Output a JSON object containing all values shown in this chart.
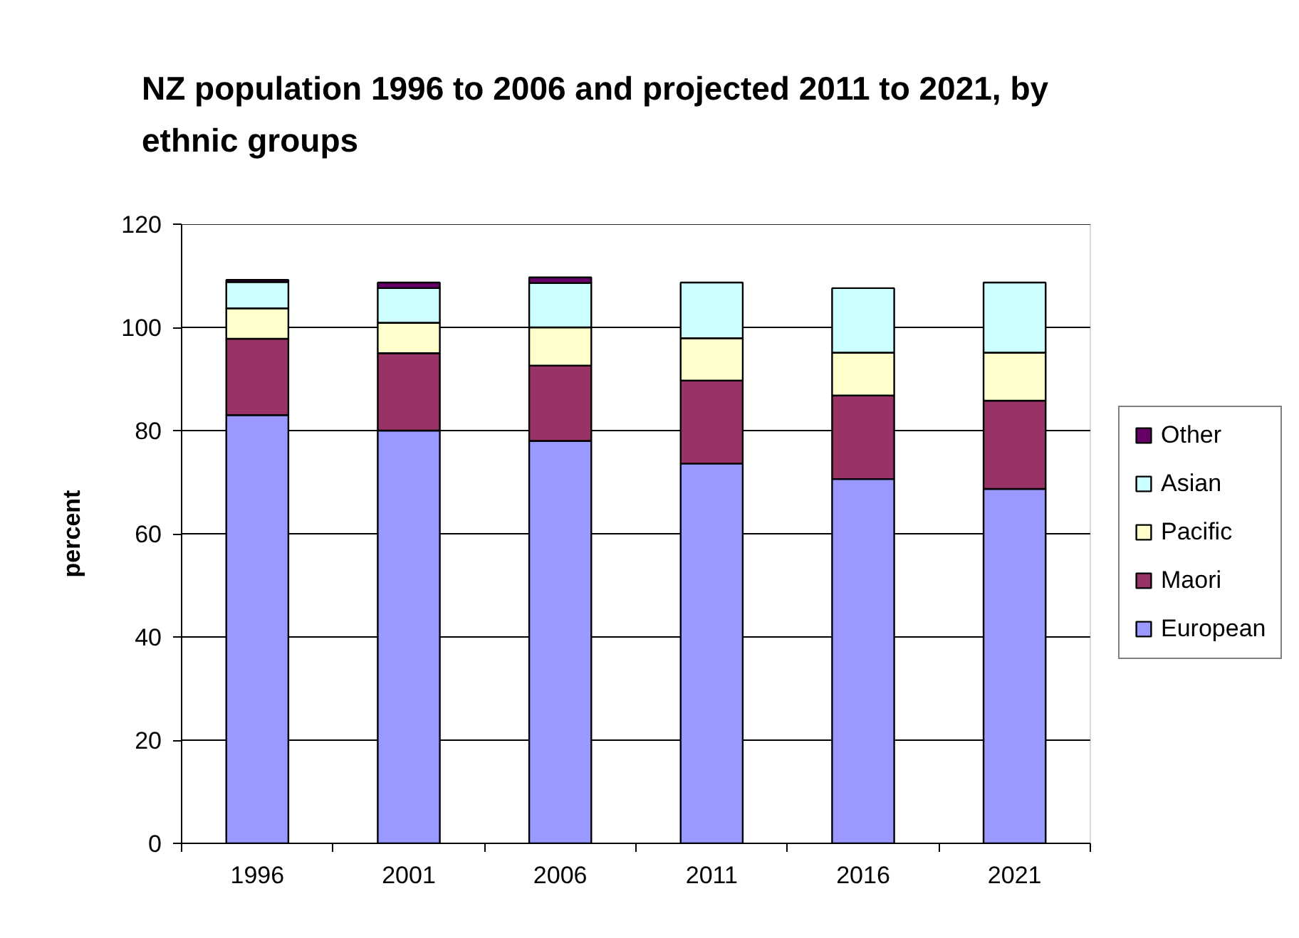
{
  "chart_data": {
    "type": "bar",
    "title": "NZ population 1996 to 2006 and projected 2011 to 2021, by ethnic groups",
    "ylabel": "percent",
    "categories": [
      "1996",
      "2001",
      "2006",
      "2011",
      "2016",
      "2021"
    ],
    "stacked": true,
    "series": [
      {
        "name": "European",
        "color": "#9999ff",
        "values": [
          83,
          80,
          78,
          73.6,
          70.6,
          68.7
        ]
      },
      {
        "name": "Maori",
        "color": "#993366",
        "values": [
          14.8,
          15,
          14.6,
          16.1,
          16.2,
          17.1
        ]
      },
      {
        "name": "Pacific",
        "color": "#ffffcc",
        "values": [
          5.9,
          5.9,
          7.4,
          8.2,
          8.3,
          9.3
        ]
      },
      {
        "name": "Asian",
        "color": "#ccffff",
        "values": [
          5.1,
          6.7,
          8.6,
          10.8,
          12.5,
          13.6
        ]
      },
      {
        "name": "Other",
        "color": "#660066",
        "values": [
          0.4,
          1.1,
          1.1,
          null,
          null,
          null
        ]
      }
    ],
    "ylim": [
      0,
      120
    ],
    "yticks": [
      0,
      20,
      40,
      60,
      80,
      100,
      120
    ],
    "grid": "y",
    "legend": "right"
  }
}
